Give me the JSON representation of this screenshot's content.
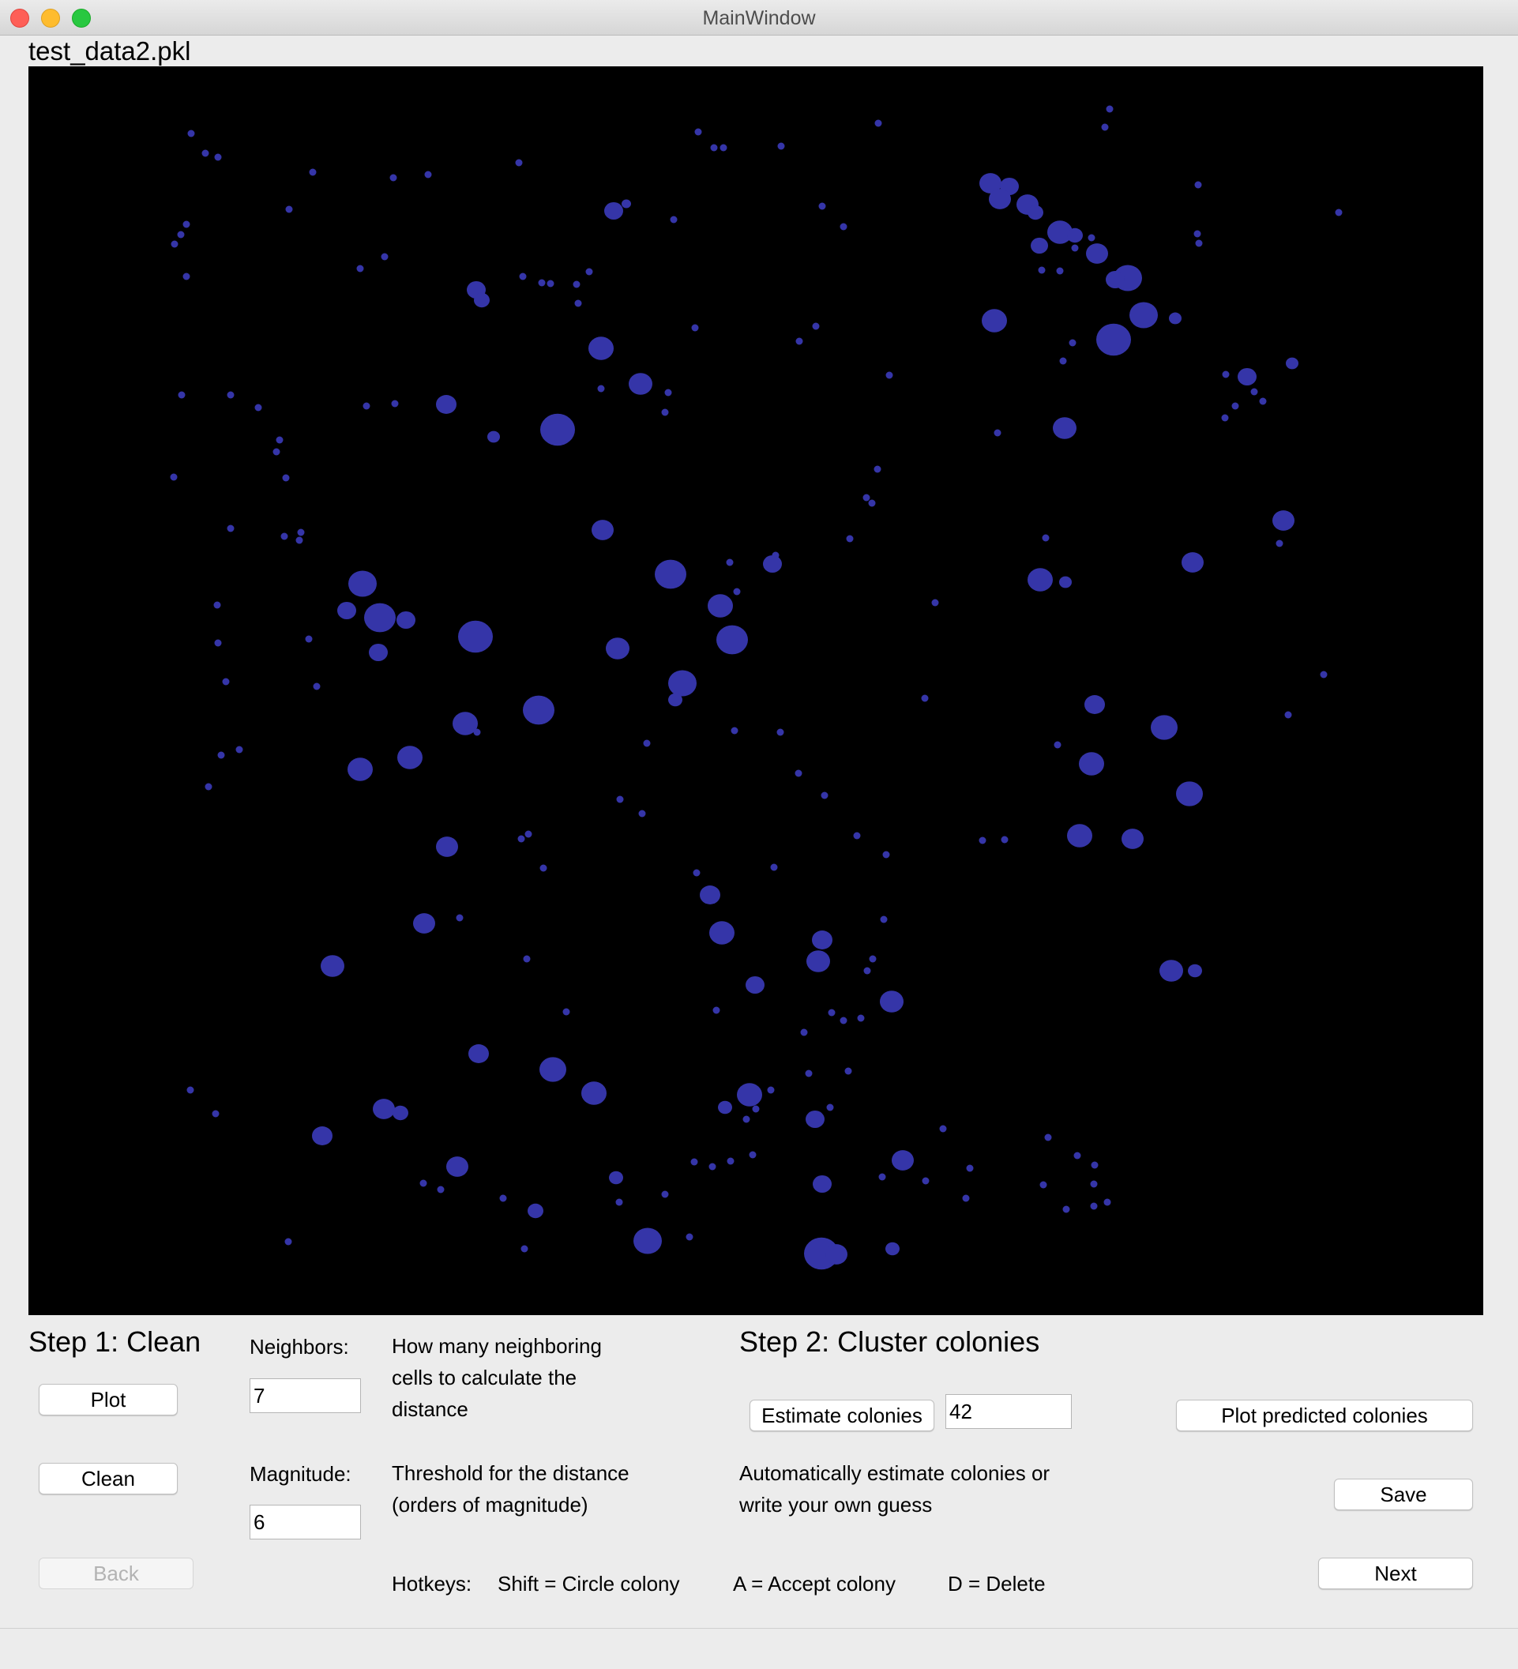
{
  "window": {
    "title": "MainWindow",
    "filename": "test_data2.pkl"
  },
  "step1": {
    "heading": "Step 1: Clean",
    "plot_label": "Plot",
    "clean_label": "Clean",
    "back_label": "Back",
    "neighbors_label": "Neighbors:",
    "neighbors_value": "7",
    "neighbors_desc": [
      "How many neighboring",
      "cells to calculate the",
      "distance"
    ],
    "magnitude_label": "Magnitude:",
    "magnitude_value": "6",
    "magnitude_desc": [
      "Threshold for the distance",
      "(orders of magnitude)"
    ]
  },
  "step2": {
    "heading": "Step 2: Cluster colonies",
    "estimate_label": "Estimate colonies",
    "estimate_value": "42",
    "plot_predicted_label": "Plot predicted colonies",
    "save_label": "Save",
    "next_label": "Next",
    "estimate_desc": [
      "Automatically estimate colonies or",
      "write your own guess"
    ]
  },
  "hotkeys": {
    "title": "Hotkeys:",
    "shift": "Shift = Circle colony",
    "accept": "A = Accept colony",
    "delete": "D = Delete"
  },
  "plot_colors": {
    "background": "#000000",
    "point": "#3535a8"
  }
}
